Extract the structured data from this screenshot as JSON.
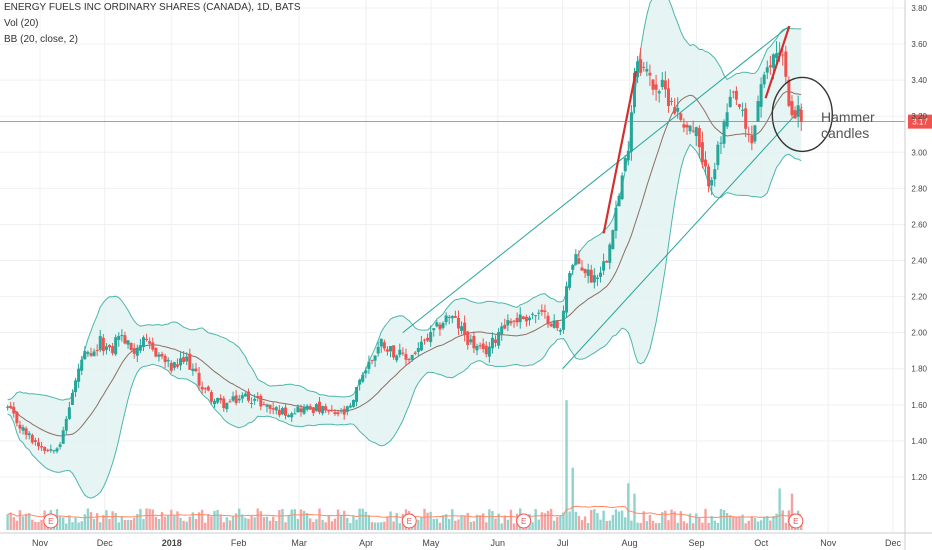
{
  "legend": {
    "symbol_line": "ENERGY FUELS INC ORDINARY SHARES (CANADA), 1D, BATS",
    "volume_line": "Vol (20)",
    "bb_line": "BB (20, close, 2)"
  },
  "annotation": {
    "line1": "Hammer",
    "line2": "candles"
  },
  "last_price": {
    "label": "3.17",
    "value": 3.17
  },
  "colors": {
    "up": "#26a69a",
    "down": "#ef5350",
    "bb_fill": "#e0f2f1",
    "bb_line": "#4db6ac",
    "basis": "#8d6e63",
    "price_line": "#ef5350",
    "grid": "#eef0f3",
    "trend": "#26a69a",
    "drawing": "#d32f2f",
    "circle": "#333333",
    "vol_up": "#8fd3cd",
    "vol_down": "#f5a3a1",
    "vol_ma": "#ff8a65"
  },
  "chart_data": {
    "type": "candlestick",
    "y_axis": {
      "min": 1.1,
      "max": 3.8,
      "ticks": [
        "1.20",
        "1.40",
        "1.60",
        "1.80",
        "2.00",
        "2.20",
        "2.40",
        "2.60",
        "2.80",
        "3.00",
        "3.20",
        "3.40",
        "3.60",
        "3.80"
      ]
    },
    "x_axis": {
      "labels": [
        "Nov",
        "Dec",
        "2018",
        "Feb",
        "Mar",
        "Apr",
        "May",
        "Jun",
        "Jul",
        "Aug",
        "Sep",
        "Oct",
        "Nov",
        "Dec"
      ],
      "label_day": [
        0,
        30,
        61,
        92,
        120,
        151,
        181,
        212,
        242,
        273,
        304,
        334,
        365,
        395
      ]
    },
    "earnings_markers": {
      "label": "E",
      "day": [
        5,
        171,
        224,
        350
      ]
    },
    "anchors": [
      {
        "day": -15,
        "close": 1.58
      },
      {
        "day": -8,
        "close": 1.46
      },
      {
        "day": -3,
        "close": 1.4
      },
      {
        "day": 4,
        "close": 1.35
      },
      {
        "day": 10,
        "close": 1.4
      },
      {
        "day": 14,
        "close": 1.62
      },
      {
        "day": 20,
        "close": 1.88
      },
      {
        "day": 24,
        "close": 1.85
      },
      {
        "day": 28,
        "close": 1.95
      },
      {
        "day": 33,
        "close": 1.88
      },
      {
        "day": 36,
        "close": 2.0
      },
      {
        "day": 43,
        "close": 1.9
      },
      {
        "day": 47,
        "close": 1.95
      },
      {
        "day": 55,
        "close": 1.88
      },
      {
        "day": 61,
        "close": 1.8
      },
      {
        "day": 68,
        "close": 1.85
      },
      {
        "day": 75,
        "close": 1.7
      },
      {
        "day": 81,
        "close": 1.62
      },
      {
        "day": 86,
        "close": 1.6
      },
      {
        "day": 95,
        "close": 1.65
      },
      {
        "day": 101,
        "close": 1.62
      },
      {
        "day": 107,
        "close": 1.58
      },
      {
        "day": 113,
        "close": 1.56
      },
      {
        "day": 120,
        "close": 1.58
      },
      {
        "day": 128,
        "close": 1.58
      },
      {
        "day": 135,
        "close": 1.55
      },
      {
        "day": 141,
        "close": 1.55
      },
      {
        "day": 145,
        "close": 1.6
      },
      {
        "day": 148,
        "close": 1.75
      },
      {
        "day": 151,
        "close": 1.8
      },
      {
        "day": 158,
        "close": 1.95
      },
      {
        "day": 163,
        "close": 1.9
      },
      {
        "day": 170,
        "close": 1.85
      },
      {
        "day": 176,
        "close": 1.92
      },
      {
        "day": 181,
        "close": 1.98
      },
      {
        "day": 189,
        "close": 2.1
      },
      {
        "day": 193,
        "close": 2.05
      },
      {
        "day": 199,
        "close": 1.95
      },
      {
        "day": 205,
        "close": 1.88
      },
      {
        "day": 210,
        "close": 1.95
      },
      {
        "day": 214,
        "close": 2.05
      },
      {
        "day": 222,
        "close": 2.08
      },
      {
        "day": 229,
        "close": 2.1
      },
      {
        "day": 236,
        "close": 2.08
      },
      {
        "day": 241,
        "close": 2.0
      },
      {
        "day": 244,
        "close": 2.3
      },
      {
        "day": 248,
        "close": 2.4
      },
      {
        "day": 252,
        "close": 2.35
      },
      {
        "day": 256,
        "close": 2.3
      },
      {
        "day": 262,
        "close": 2.4
      },
      {
        "day": 265,
        "close": 2.6
      },
      {
        "day": 268,
        "close": 2.75
      },
      {
        "day": 272,
        "close": 3.0
      },
      {
        "day": 276,
        "close": 3.55
      },
      {
        "day": 280,
        "close": 3.45
      },
      {
        "day": 284,
        "close": 3.38
      },
      {
        "day": 288,
        "close": 3.35
      },
      {
        "day": 292,
        "close": 3.3
      },
      {
        "day": 296,
        "close": 3.2
      },
      {
        "day": 300,
        "close": 3.15
      },
      {
        "day": 304,
        "close": 3.1
      },
      {
        "day": 307,
        "close": 2.9
      },
      {
        "day": 310,
        "close": 2.85
      },
      {
        "day": 314,
        "close": 3.0
      },
      {
        "day": 318,
        "close": 3.2
      },
      {
        "day": 321,
        "close": 3.3
      },
      {
        "day": 324,
        "close": 3.25
      },
      {
        "day": 327,
        "close": 3.1
      },
      {
        "day": 330,
        "close": 3.05
      },
      {
        "day": 333,
        "close": 3.35
      },
      {
        "day": 336,
        "close": 3.4
      },
      {
        "day": 340,
        "close": 3.55
      },
      {
        "day": 343,
        "close": 3.6
      },
      {
        "day": 345,
        "close": 3.45
      },
      {
        "day": 347,
        "close": 3.2
      },
      {
        "day": 350,
        "close": 3.25
      },
      {
        "day": 353,
        "close": 3.17
      }
    ],
    "volume_spikes": [
      {
        "day": 244,
        "value": 5.0
      },
      {
        "day": 246,
        "value": 2.4
      },
      {
        "day": 273,
        "value": 1.8
      },
      {
        "day": 276,
        "value": 1.4
      },
      {
        "day": 343,
        "value": 1.6
      },
      {
        "day": 348,
        "value": 1.4
      }
    ],
    "trend_channel": [
      {
        "from": {
          "day": 168,
          "close": 2.0
        },
        "to": {
          "day": 347,
          "close": 3.7
        }
      },
      {
        "from": {
          "day": 242,
          "close": 1.8
        },
        "to": {
          "day": 353,
          "close": 3.25
        }
      }
    ],
    "drawings": [
      {
        "from": {
          "day": 261,
          "close": 2.55
        },
        "to": {
          "day": 276,
          "close": 3.45
        }
      },
      {
        "from": {
          "day": 336,
          "close": 3.3
        },
        "to": {
          "day": 347,
          "close": 3.7
        }
      }
    ]
  }
}
